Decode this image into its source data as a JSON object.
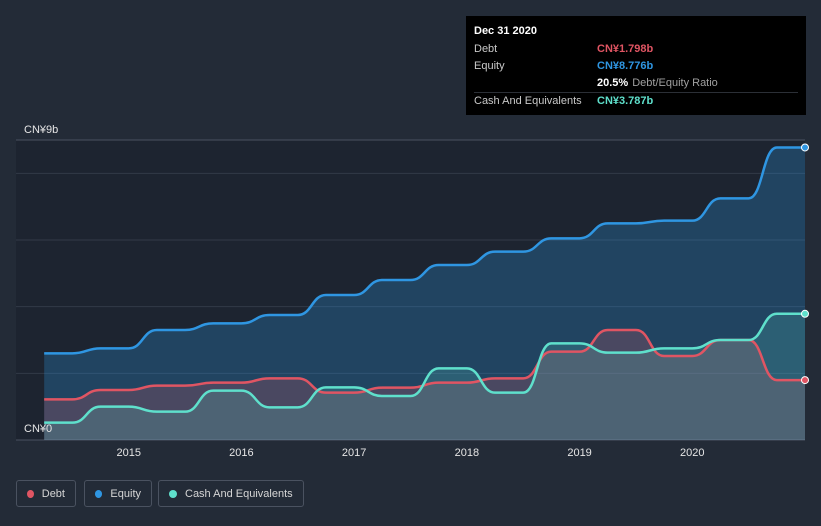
{
  "tooltip": {
    "date": "Dec 31 2020",
    "rows": [
      {
        "label": "Debt",
        "value": "CN¥1.798b",
        "color": "#e05563"
      },
      {
        "label": "Equity",
        "value": "CN¥8.776b",
        "color": "#2f96e2"
      },
      {
        "label": "",
        "value": "20.5%",
        "extra": "Debt/Equity Ratio",
        "color": "#ffffff"
      },
      {
        "label": "Cash And Equivalents",
        "value": "CN¥3.787b",
        "color": "#5fe0cc"
      }
    ]
  },
  "legend": [
    {
      "label": "Debt",
      "color": "#e05563"
    },
    {
      "label": "Equity",
      "color": "#2f96e2"
    },
    {
      "label": "Cash And Equivalents",
      "color": "#5fe0cc"
    }
  ],
  "chart_data": {
    "type": "area",
    "title": "",
    "xlabel": "",
    "ylabel": "",
    "ylim": [
      0,
      9
    ],
    "y_unit": "CN¥ billions",
    "y_tick_labels": [
      "CN¥9b",
      "CN¥0"
    ],
    "x_tick_labels": [
      "2015",
      "2016",
      "2017",
      "2018",
      "2019",
      "2020"
    ],
    "xlim": [
      2014.25,
      2021.0
    ],
    "grid": true,
    "series": [
      {
        "name": "Equity",
        "color": "#2f96e2",
        "x": [
          2014.25,
          2014.5,
          2014.75,
          2015.0,
          2015.25,
          2015.5,
          2015.75,
          2016.0,
          2016.25,
          2016.5,
          2016.75,
          2017.0,
          2017.25,
          2017.5,
          2017.75,
          2018.0,
          2018.25,
          2018.5,
          2018.75,
          2019.0,
          2019.25,
          2019.5,
          2019.75,
          2020.0,
          2020.25,
          2020.5,
          2020.75,
          2021.0
        ],
        "values": [
          2.6,
          2.6,
          2.75,
          2.75,
          3.3,
          3.3,
          3.5,
          3.5,
          3.75,
          3.75,
          4.35,
          4.35,
          4.8,
          4.8,
          5.25,
          5.25,
          5.65,
          5.65,
          6.05,
          6.05,
          6.5,
          6.5,
          6.58,
          6.58,
          7.25,
          7.25,
          8.776,
          8.776
        ]
      },
      {
        "name": "Debt",
        "color": "#e05563",
        "x": [
          2014.25,
          2014.5,
          2014.75,
          2015.0,
          2015.25,
          2015.5,
          2015.75,
          2016.0,
          2016.25,
          2016.5,
          2016.75,
          2017.0,
          2017.25,
          2017.5,
          2017.75,
          2018.0,
          2018.25,
          2018.5,
          2018.75,
          2019.0,
          2019.25,
          2019.5,
          2019.75,
          2020.0,
          2020.25,
          2020.5,
          2020.75,
          2021.0
        ],
        "values": [
          1.22,
          1.22,
          1.5,
          1.5,
          1.63,
          1.63,
          1.72,
          1.72,
          1.85,
          1.85,
          1.42,
          1.42,
          1.57,
          1.57,
          1.72,
          1.72,
          1.85,
          1.85,
          2.65,
          2.65,
          3.3,
          3.3,
          2.52,
          2.52,
          3.0,
          3.0,
          1.798,
          1.798
        ]
      },
      {
        "name": "Cash And Equivalents",
        "color": "#5fe0cc",
        "x": [
          2014.25,
          2014.5,
          2014.75,
          2015.0,
          2015.25,
          2015.5,
          2015.75,
          2016.0,
          2016.25,
          2016.5,
          2016.75,
          2017.0,
          2017.25,
          2017.5,
          2017.75,
          2018.0,
          2018.25,
          2018.5,
          2018.75,
          2019.0,
          2019.25,
          2019.5,
          2019.75,
          2020.0,
          2020.25,
          2020.5,
          2020.75,
          2021.0
        ],
        "values": [
          0.52,
          0.52,
          1.0,
          1.0,
          0.85,
          0.85,
          1.48,
          1.48,
          0.98,
          0.98,
          1.58,
          1.58,
          1.32,
          1.32,
          2.15,
          2.15,
          1.42,
          1.42,
          2.9,
          2.9,
          2.62,
          2.62,
          2.75,
          2.75,
          3.0,
          3.0,
          3.787,
          3.787
        ]
      }
    ]
  }
}
